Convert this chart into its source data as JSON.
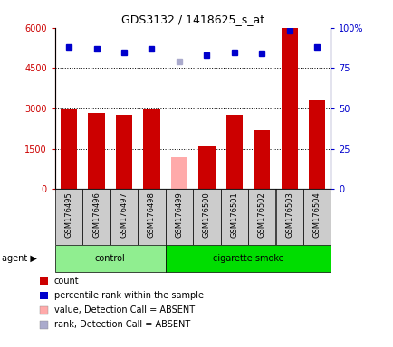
{
  "title": "GDS3132 / 1418625_s_at",
  "samples": [
    "GSM176495",
    "GSM176496",
    "GSM176497",
    "GSM176498",
    "GSM176499",
    "GSM176500",
    "GSM176501",
    "GSM176502",
    "GSM176503",
    "GSM176504"
  ],
  "counts": [
    2980,
    2830,
    2750,
    2980,
    1200,
    1580,
    2780,
    2180,
    6000,
    3300
  ],
  "counts_absent": [
    false,
    false,
    false,
    false,
    true,
    false,
    false,
    false,
    false,
    false
  ],
  "percentile_ranks": [
    88,
    87,
    85,
    87,
    79,
    83,
    85,
    84,
    98,
    88
  ],
  "rank_absent": [
    false,
    false,
    false,
    false,
    true,
    false,
    false,
    false,
    false,
    false
  ],
  "ylim_left": [
    0,
    6000
  ],
  "ylim_right": [
    0,
    100
  ],
  "yticks_left": [
    0,
    1500,
    3000,
    4500,
    6000
  ],
  "ytick_labels_left": [
    "0",
    "1500",
    "3000",
    "4500",
    "6000"
  ],
  "yticks_right": [
    0,
    25,
    50,
    75,
    100
  ],
  "ytick_labels_right": [
    "0",
    "25",
    "50",
    "75",
    "100%"
  ],
  "groups": [
    {
      "label": "control",
      "indices": [
        0,
        1,
        2,
        3
      ],
      "color": "#90ee90"
    },
    {
      "label": "cigarette smoke",
      "indices": [
        4,
        5,
        6,
        7,
        8,
        9
      ],
      "color": "#00dd00"
    }
  ],
  "bar_color_normal": "#cc0000",
  "bar_color_absent": "#ffaaaa",
  "dot_color_normal": "#0000cc",
  "dot_color_absent": "#aaaacc",
  "bar_width": 0.6,
  "tick_label_bg": "#cccccc",
  "legend_items": [
    {
      "label": "count",
      "color": "#cc0000"
    },
    {
      "label": "percentile rank within the sample",
      "color": "#0000cc"
    },
    {
      "label": "value, Detection Call = ABSENT",
      "color": "#ffaaaa"
    },
    {
      "label": "rank, Detection Call = ABSENT",
      "color": "#aaaacc"
    }
  ]
}
